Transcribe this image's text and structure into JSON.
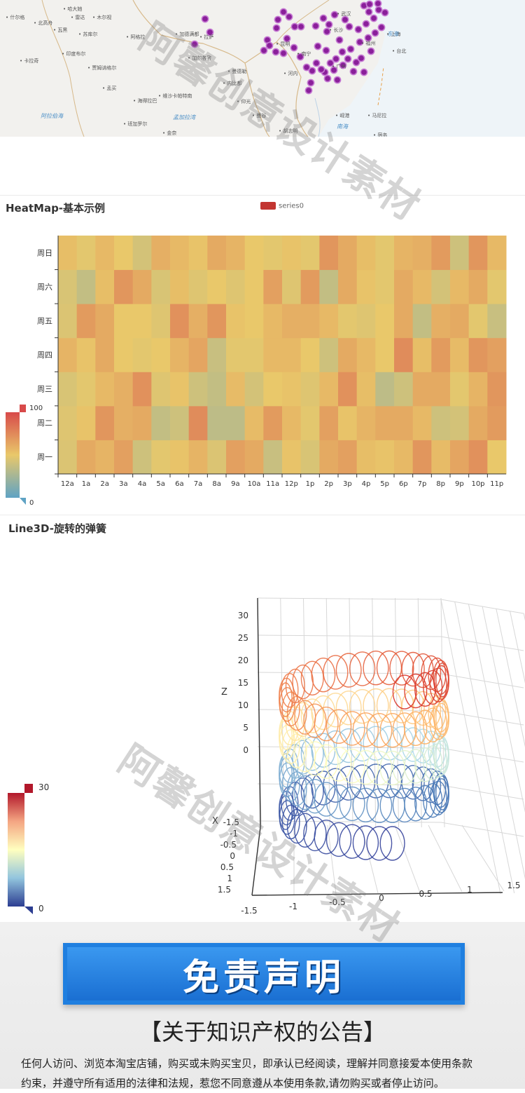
{
  "map": {
    "places": [
      {
        "name": "什尔格"
      },
      {
        "name": "哈大她"
      },
      {
        "name": "北高舟"
      },
      {
        "name": "雷达"
      },
      {
        "name": "木尔视"
      },
      {
        "name": "瓦黑"
      },
      {
        "name": "苏库尔"
      },
      {
        "name": "印度布尔"
      },
      {
        "name": "阿格拉"
      },
      {
        "name": "加德满都"
      },
      {
        "name": "拉萨"
      },
      {
        "name": "加尔各答"
      },
      {
        "name": "贾姆讷格尔"
      },
      {
        "name": "卡拉奇"
      },
      {
        "name": "孟买"
      },
      {
        "name": "海得拉巴"
      },
      {
        "name": "维沙卡帕特南"
      },
      {
        "name": "班加罗尔"
      },
      {
        "name": "金奈"
      },
      {
        "name": "曼德勒"
      },
      {
        "name": "内比都"
      },
      {
        "name": "仰光"
      },
      {
        "name": "曼谷"
      },
      {
        "name": "河内"
      },
      {
        "name": "南宁"
      },
      {
        "name": "广州"
      },
      {
        "name": "台北"
      },
      {
        "name": "上海"
      },
      {
        "name": "武汉"
      },
      {
        "name": "昆明"
      },
      {
        "name": "长沙"
      },
      {
        "name": "福州"
      },
      {
        "name": "岘港"
      },
      {
        "name": "马尼拉"
      },
      {
        "name": "宿务"
      },
      {
        "name": "胡志明"
      }
    ],
    "seas": [
      "阿拉伯海",
      "孟加拉湾",
      "东海",
      "南海"
    ]
  },
  "heatmap": {
    "title": "HeatMap-基本示例",
    "legend": "series0",
    "visual_max": "100",
    "visual_min": "0",
    "colors": {
      "low": "#5fa3c4",
      "mid": "#e9c86a",
      "high": "#d84a4a",
      "series": "#c23531"
    }
  },
  "line3d": {
    "title": "Line3D-旋转的弹簧",
    "visual_max": "30",
    "visual_min": "0",
    "axis_label_z": "Z",
    "axis_label_x": "X"
  },
  "chart_data": [
    {
      "type": "heatmap",
      "title": "HeatMap-基本示例",
      "legend": [
        "series0"
      ],
      "x_categories": [
        "12a",
        "1a",
        "2a",
        "3a",
        "4a",
        "5a",
        "6a",
        "7a",
        "8a",
        "9a",
        "10a",
        "11a",
        "12p",
        "1p",
        "2p",
        "3p",
        "4p",
        "5p",
        "6p",
        "7p",
        "8p",
        "9p",
        "10p",
        "11p"
      ],
      "y_categories": [
        "周一",
        "周二",
        "周三",
        "周四",
        "周五",
        "周六",
        "周日"
      ],
      "visual_range": [
        0,
        100
      ],
      "values": [
        [
          45,
          62,
          58,
          66,
          40,
          48,
          52,
          58,
          45,
          66,
          62,
          38,
          52,
          44,
          62,
          66,
          54,
          52,
          56,
          70,
          55,
          64,
          72,
          50
        ],
        [
          46,
          52,
          70,
          60,
          62,
          36,
          40,
          74,
          34,
          34,
          55,
          68,
          56,
          48,
          66,
          52,
          58,
          62,
          62,
          56,
          40,
          42,
          62,
          68
        ],
        [
          44,
          48,
          56,
          60,
          72,
          46,
          52,
          40,
          36,
          55,
          42,
          50,
          52,
          46,
          56,
          72,
          54,
          34,
          40,
          62,
          62,
          48,
          58,
          70
        ],
        [
          58,
          52,
          62,
          50,
          48,
          50,
          58,
          64,
          38,
          48,
          48,
          56,
          56,
          50,
          40,
          62,
          56,
          50,
          74,
          54,
          68,
          55,
          70,
          66
        ],
        [
          45,
          68,
          62,
          50,
          50,
          46,
          72,
          60,
          70,
          52,
          50,
          56,
          60,
          60,
          56,
          48,
          46,
          50,
          62,
          36,
          60,
          62,
          48,
          38
        ],
        [
          44,
          36,
          54,
          70,
          62,
          44,
          54,
          46,
          50,
          46,
          50,
          66,
          46,
          68,
          36,
          62,
          52,
          48,
          62,
          56,
          42,
          56,
          62,
          48
        ],
        [
          54,
          48,
          56,
          50,
          42,
          60,
          56,
          52,
          62,
          58,
          50,
          48,
          52,
          48,
          70,
          62,
          54,
          48,
          58,
          60,
          68,
          40,
          70,
          56
        ]
      ]
    },
    {
      "type": "line3d",
      "title": "Line3D-旋转的弹簧",
      "visual_range": [
        0,
        30
      ],
      "z_axis": {
        "label": "Z",
        "ticks": [
          "0",
          "5",
          "10",
          "15",
          "20",
          "25",
          "30"
        ]
      },
      "x_axis": {
        "label": "X",
        "ticks": [
          "1.5",
          "1",
          "0.5",
          "0",
          "-0.5",
          "-1",
          "-1.5"
        ]
      },
      "y_axis": {
        "ticks": [
          "-1.5",
          "-1",
          "-0.5",
          "0",
          "0.5",
          "1",
          "1.5"
        ]
      },
      "spring": {
        "coils": 4,
        "range_z": [
          0,
          22
        ]
      }
    }
  ],
  "disclaimer": {
    "banner": "免责声明",
    "title": "【关于知识产权的公告】",
    "body_line1": "任何人访问、浏览本淘宝店铺，购买或未购买宝贝，即承认已经阅读，理解并同意接爱本使用条款",
    "body_line2": "约束，并遵守所有适用的法律和法规，惹您不同意遵从本使用条款,请勿购买或者停止访问。"
  },
  "watermark": "阿馨创意设计素材"
}
